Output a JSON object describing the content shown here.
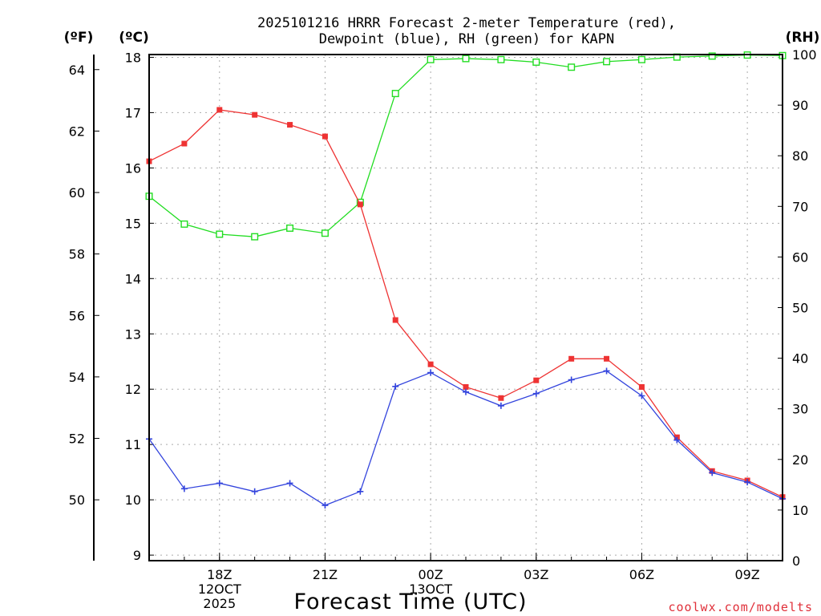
{
  "chart_data": {
    "type": "line",
    "title_lines": [
      "2025101216 HRRR Forecast 2-meter Temperature (red),",
      "Dewpoint (blue), RH (green) for KAPN"
    ],
    "xlabel": "Forecast Time (UTC)",
    "credit": "coolwx.com/modelts",
    "axis_headers": {
      "fahrenheit": "(ºF)",
      "celsius": "(ºC)",
      "rh": "(RH)"
    },
    "x_range": [
      16,
      34
    ],
    "x_ticks": [
      {
        "hour": 18,
        "lines": [
          "18Z",
          "12OCT",
          "2025"
        ]
      },
      {
        "hour": 21,
        "lines": [
          "21Z"
        ]
      },
      {
        "hour": 24,
        "lines": [
          "00Z",
          "13OCT"
        ]
      },
      {
        "hour": 27,
        "lines": [
          "03Z"
        ]
      },
      {
        "hour": 30,
        "lines": [
          "06Z"
        ]
      },
      {
        "hour": 33,
        "lines": [
          "09Z"
        ]
      }
    ],
    "celsius_axis": {
      "range": [
        8.9,
        18.05
      ],
      "ticks": [
        "9",
        "10",
        "11",
        "12",
        "13",
        "14",
        "15",
        "16",
        "17",
        "18"
      ]
    },
    "fahrenheit_axis": {
      "ticks": [
        "50",
        "52",
        "54",
        "56",
        "58",
        "60",
        "62",
        "64"
      ]
    },
    "rh_axis": {
      "range": [
        0,
        100
      ],
      "ticks": [
        "0",
        "10",
        "20",
        "30",
        "40",
        "50",
        "60",
        "70",
        "80",
        "90",
        "100"
      ]
    },
    "hours": [
      16,
      17,
      18,
      19,
      20,
      21,
      22,
      23,
      24,
      25,
      26,
      27,
      28,
      29,
      30,
      31,
      32,
      33,
      34
    ],
    "series": [
      {
        "name": "Temperature (°C)",
        "color": "#ee3333",
        "marker": "filled-square",
        "axis": "celsius",
        "values": [
          16.12,
          16.44,
          17.05,
          16.96,
          16.78,
          16.57,
          15.34,
          13.25,
          12.45,
          12.04,
          11.84,
          12.16,
          12.55,
          12.55,
          12.04,
          11.13,
          10.52,
          10.35,
          10.05
        ]
      },
      {
        "name": "Dewpoint (°C)",
        "color": "#3344dd",
        "marker": "plus",
        "axis": "celsius",
        "values": [
          11.1,
          10.2,
          10.3,
          10.15,
          10.3,
          9.9,
          10.15,
          12.05,
          12.3,
          11.95,
          11.7,
          11.92,
          12.17,
          12.33,
          11.88,
          11.08,
          10.49,
          10.32,
          10.02
        ]
      },
      {
        "name": "Relative Humidity (%)",
        "color": "#22dd22",
        "marker": "open-square",
        "axis": "rh",
        "values": [
          72,
          66.5,
          64.5,
          64,
          65.7,
          64.7,
          70.8,
          92.3,
          99,
          99.2,
          99,
          98.5,
          97.5,
          98.6,
          99,
          99.5,
          99.7,
          99.9,
          99.8
        ]
      }
    ]
  }
}
